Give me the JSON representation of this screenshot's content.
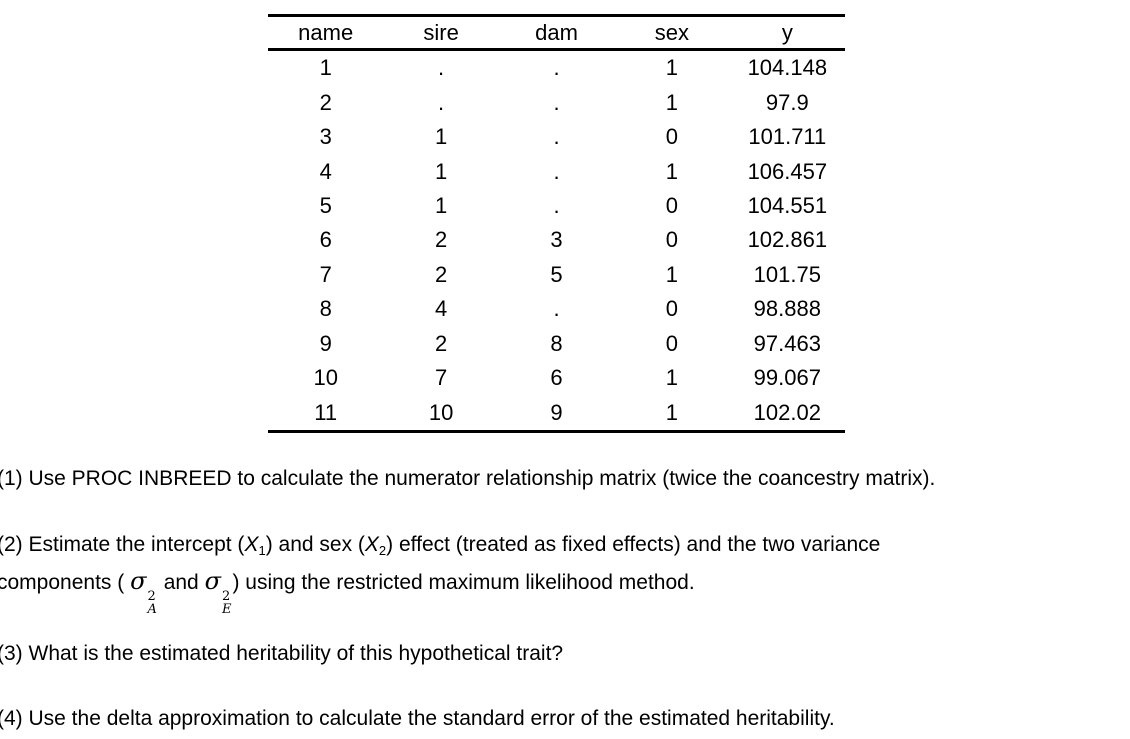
{
  "table": {
    "columns": [
      "name",
      "sire",
      "dam",
      "sex",
      "y"
    ],
    "rows": [
      [
        "1",
        ".",
        ".",
        "1",
        "104.148"
      ],
      [
        "2",
        ".",
        ".",
        "1",
        "97.9"
      ],
      [
        "3",
        "1",
        ".",
        "0",
        "101.711"
      ],
      [
        "4",
        "1",
        ".",
        "1",
        "106.457"
      ],
      [
        "5",
        "1",
        ".",
        "0",
        "104.551"
      ],
      [
        "6",
        "2",
        "3",
        "0",
        "102.861"
      ],
      [
        "7",
        "2",
        "5",
        "1",
        "101.75"
      ],
      [
        "8",
        "4",
        ".",
        "0",
        "98.888"
      ],
      [
        "9",
        "2",
        "8",
        "0",
        "97.463"
      ],
      [
        "10",
        "7",
        "6",
        "1",
        "99.067"
      ],
      [
        "11",
        "10",
        "9",
        "1",
        "102.02"
      ]
    ]
  },
  "questions": {
    "q1": "(1) Use PROC INBREED to calculate the numerator relationship matrix (twice the coancestry matrix).",
    "q2": {
      "line1_pre": "(2) Estimate the intercept (",
      "x": "X",
      "x1_sub": "1",
      "line1_mid": ") and sex (",
      "x2_sub": "2",
      "line1_post": ") effect (treated as fixed effects) and the two variance",
      "line2_pre": "components ( ",
      "sigma": "σ",
      "sup": "2",
      "subA": "A",
      "line2_mid": " and ",
      "subE": "E",
      "line2_post": ") using the restricted maximum likelihood method."
    },
    "q3": "(3) What is the estimated heritability of this hypothetical trait?",
    "q4": "(4) Use the delta approximation to calculate the standard error of the estimated heritability."
  },
  "colors": {
    "text": "#000000",
    "background": "#ffffff",
    "rule": "#000000"
  }
}
